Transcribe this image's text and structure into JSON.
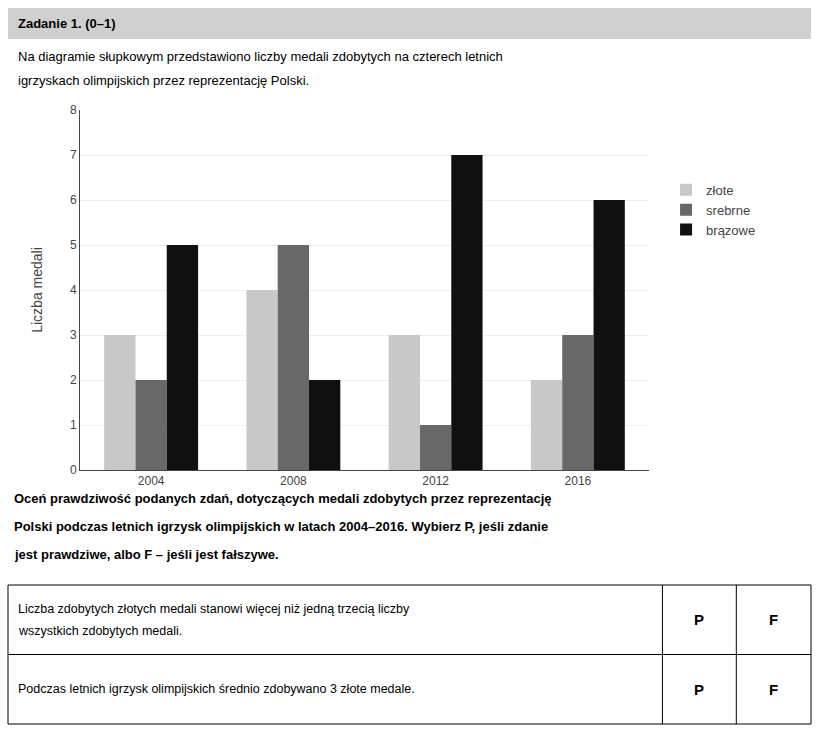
{
  "chart_data": {
    "type": "bar",
    "title": "Zadanie 1. (0–1)",
    "subtitle": [
      "Na diagramie słupkowym przedstawiono liczby medali zdobytych na czterech letnich",
      "igrzyskach olimpijskich przez reprezentację Polski."
    ],
    "categories": [
      "2004",
      "2008",
      "2012",
      "2016"
    ],
    "series": [
      {
        "name": "złote",
        "color": "#c8c8c8",
        "values": [
          3,
          4,
          3,
          2
        ]
      },
      {
        "name": "srebrne",
        "color": "#686868",
        "values": [
          2,
          5,
          1,
          3
        ]
      },
      {
        "name": "brązowe",
        "color": "#101010",
        "values": [
          5,
          2,
          7,
          6
        ]
      }
    ],
    "ylabel": "Liczba medali",
    "ylim": [
      0,
      8
    ],
    "yticks": [
      0,
      1,
      2,
      3,
      4,
      5,
      6,
      7,
      8
    ],
    "grid": true,
    "legend": "right",
    "annotations": [
      "Oceń prawdziwość podanych zdań, dotyczących medali zdobytych przez reprezentację",
      "Polski podczas letnich igrzysk olimpijskich w latach 2004–2016. Wybierz P, jeśli zdanie",
      "jest prawdziwe, albo F – jeśli jest fałszywe."
    ],
    "table": [
      {
        "text": [
          "Liczba zdobytych złotych medali stanowi więcej niż jedną trzecią liczby",
          "wszystkich zdobytych medali."
        ],
        "cells": [
          "P",
          "F"
        ]
      },
      {
        "text": [
          "Podczas letnich igrzysk olimpijskich średnio zdobywano 3 złote medale."
        ],
        "cells": [
          "P",
          "F"
        ]
      }
    ]
  }
}
